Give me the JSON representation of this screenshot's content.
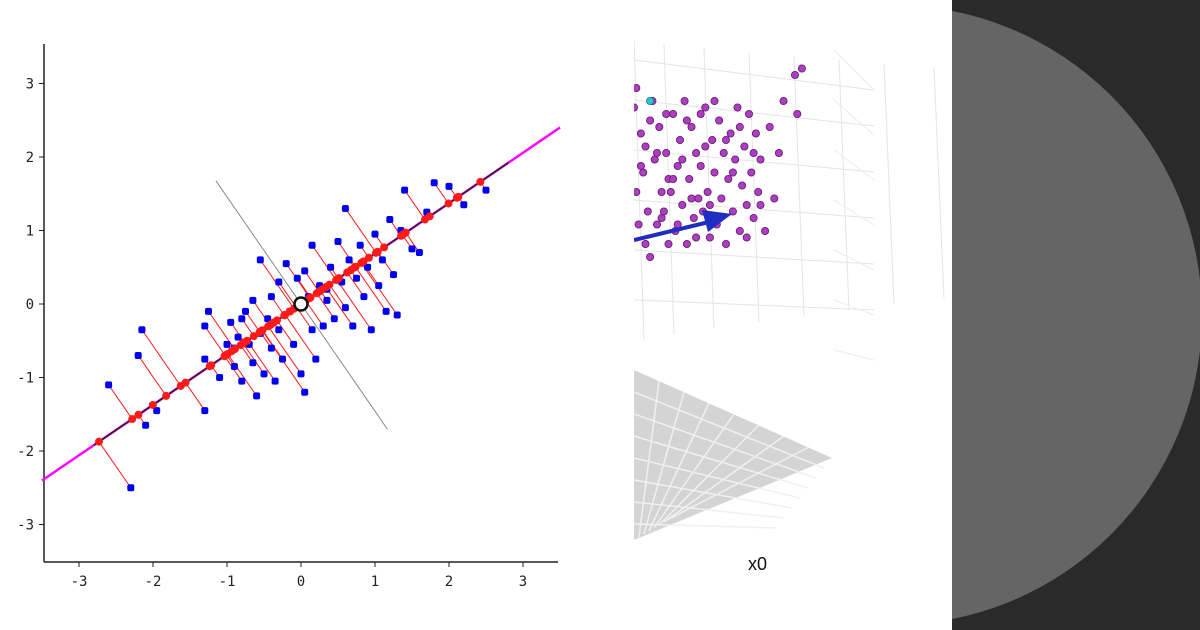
{
  "chart_data": [
    {
      "type": "scatter",
      "title": "",
      "xlabel": "",
      "ylabel": "",
      "xlim": [
        -3.5,
        3.5
      ],
      "ylim": [
        -3.5,
        3.5
      ],
      "x_ticks": [
        "-3",
        "-2",
        "-1",
        "0",
        "1",
        "2",
        "3"
      ],
      "y_ticks": [
        "3",
        "2",
        "1",
        "0",
        "-1",
        "-2",
        "-3"
      ],
      "principal_axis": {
        "slope": 0.686,
        "color": "#ff00ff"
      },
      "perpendicular_axis": {
        "color": "#888888"
      },
      "mean_point": [
        0,
        0
      ],
      "colors": {
        "points": "#0000ee",
        "projections": "#ff1a1a",
        "axis_line": "#222222"
      },
      "points": [
        [
          -2.6,
          -1.1
        ],
        [
          -2.3,
          -2.5
        ],
        [
          -2.2,
          -0.7
        ],
        [
          -2.15,
          -0.35
        ],
        [
          -2.1,
          -1.65
        ],
        [
          -1.95,
          -1.45
        ],
        [
          -1.3,
          -1.45
        ],
        [
          -1.3,
          -0.75
        ],
        [
          -1.3,
          -0.3
        ],
        [
          -1.25,
          -0.1
        ],
        [
          -1.1,
          -1.0
        ],
        [
          -1.0,
          -0.55
        ],
        [
          -0.95,
          -0.25
        ],
        [
          -0.9,
          -0.85
        ],
        [
          -0.85,
          -0.45
        ],
        [
          -0.8,
          -0.2
        ],
        [
          -0.8,
          -1.05
        ],
        [
          -0.75,
          -0.1
        ],
        [
          -0.7,
          -0.55
        ],
        [
          -0.65,
          0.05
        ],
        [
          -0.65,
          -0.8
        ],
        [
          -0.6,
          -1.25
        ],
        [
          -0.55,
          -0.4
        ],
        [
          -0.5,
          -0.95
        ],
        [
          -0.45,
          -0.2
        ],
        [
          -0.4,
          -0.6
        ],
        [
          -0.4,
          0.1
        ],
        [
          -0.35,
          -1.05
        ],
        [
          -0.3,
          -0.35
        ],
        [
          -0.3,
          0.3
        ],
        [
          -0.25,
          -0.75
        ],
        [
          -0.2,
          0.55
        ],
        [
          -0.15,
          -0.1
        ],
        [
          -0.1,
          -0.55
        ],
        [
          -0.05,
          0.35
        ],
        [
          0.0,
          -0.95
        ],
        [
          0.05,
          -1.2
        ],
        [
          0.05,
          0.45
        ],
        [
          0.1,
          0.1
        ],
        [
          0.15,
          -0.35
        ],
        [
          0.15,
          0.8
        ],
        [
          0.2,
          -0.75
        ],
        [
          0.25,
          0.25
        ],
        [
          0.3,
          -0.3
        ],
        [
          0.35,
          0.05
        ],
        [
          0.4,
          0.5
        ],
        [
          0.45,
          -0.2
        ],
        [
          0.5,
          0.85
        ],
        [
          0.55,
          0.3
        ],
        [
          0.6,
          -0.05
        ],
        [
          0.65,
          0.6
        ],
        [
          0.7,
          -0.3
        ],
        [
          0.75,
          0.35
        ],
        [
          0.8,
          0.8
        ],
        [
          0.85,
          0.1
        ],
        [
          0.9,
          0.5
        ],
        [
          0.95,
          -0.35
        ],
        [
          1.0,
          0.95
        ],
        [
          1.05,
          0.25
        ],
        [
          1.1,
          0.6
        ],
        [
          1.15,
          -0.1
        ],
        [
          1.2,
          1.15
        ],
        [
          1.25,
          0.4
        ],
        [
          1.3,
          -0.15
        ],
        [
          1.35,
          1.0
        ],
        [
          1.4,
          1.55
        ],
        [
          1.5,
          0.75
        ],
        [
          1.7,
          1.25
        ],
        [
          1.8,
          1.65
        ],
        [
          2.0,
          1.6
        ],
        [
          2.2,
          1.35
        ],
        [
          2.5,
          1.55
        ],
        [
          -0.55,
          0.6
        ],
        [
          0.35,
          0.2
        ],
        [
          -0.9,
          -0.6
        ],
        [
          0.6,
          1.3
        ],
        [
          1.6,
          0.7
        ]
      ]
    },
    {
      "type": "scatter",
      "title": "",
      "xlabel": "x0",
      "colors": {
        "points": "#b03cc4",
        "outlier": "#2bc4d0",
        "arrow": "#1f2ec2",
        "floor": "#d4d4d4"
      },
      "points": [
        [
          0.77,
          0.74
        ],
        [
          0.8,
          0.66
        ],
        [
          0.8,
          0.76
        ],
        [
          0.93,
          0.73
        ],
        [
          0.65,
          0.87
        ],
        [
          0.66,
          0.9
        ],
        [
          0.68,
          0.83
        ],
        [
          0.69,
          0.77
        ],
        [
          0.7,
          0.81
        ],
        [
          0.71,
          0.71
        ],
        [
          0.72,
          0.64
        ],
        [
          0.72,
          0.85
        ],
        [
          0.74,
          0.79
        ],
        [
          0.75,
          0.69
        ],
        [
          0.76,
          0.84
        ],
        [
          0.78,
          0.71
        ],
        [
          0.79,
          0.8
        ],
        [
          0.81,
          0.74
        ],
        [
          0.82,
          0.86
        ],
        [
          0.83,
          0.68
        ],
        [
          0.84,
          0.78
        ],
        [
          0.85,
          0.82
        ],
        [
          0.86,
          0.72
        ],
        [
          0.87,
          0.88
        ],
        [
          0.88,
          0.66
        ],
        [
          0.89,
          0.76
        ],
        [
          0.9,
          0.84
        ],
        [
          0.91,
          0.7
        ],
        [
          0.92,
          0.8
        ],
        [
          0.94,
          0.78
        ],
        [
          0.95,
          0.71
        ],
        [
          0.96,
          0.87
        ],
        [
          0.97,
          0.74
        ],
        [
          0.98,
          0.67
        ],
        [
          0.99,
          0.82
        ],
        [
          1.0,
          0.77
        ],
        [
          1.01,
          0.69
        ],
        [
          1.02,
          0.85
        ],
        [
          1.03,
          0.73
        ],
        [
          1.04,
          0.8
        ],
        [
          1.05,
          0.66
        ],
        [
          1.06,
          0.76
        ],
        [
          1.07,
          0.83
        ],
        [
          1.08,
          0.71
        ],
        [
          1.09,
          0.79
        ],
        [
          1.1,
          0.87
        ],
        [
          1.11,
          0.68
        ],
        [
          1.12,
          0.75
        ],
        [
          1.13,
          0.81
        ],
        [
          1.14,
          0.72
        ],
        [
          1.15,
          0.86
        ],
        [
          1.16,
          0.77
        ],
        [
          1.17,
          0.7
        ],
        [
          1.18,
          0.83
        ],
        [
          1.19,
          0.74
        ],
        [
          1.2,
          0.79
        ],
        [
          1.22,
          0.68
        ],
        [
          1.24,
          0.84
        ],
        [
          1.26,
          0.73
        ],
        [
          1.28,
          0.8
        ],
        [
          0.66,
          0.74
        ],
        [
          0.67,
          0.69
        ],
        [
          0.68,
          0.78
        ],
        [
          0.7,
          0.66
        ],
        [
          0.73,
          0.88
        ],
        [
          0.75,
          0.8
        ],
        [
          0.77,
          0.7
        ],
        [
          0.79,
          0.86
        ],
        [
          0.82,
          0.76
        ],
        [
          0.84,
          0.69
        ],
        [
          0.86,
          0.79
        ],
        [
          0.88,
          0.85
        ],
        [
          0.9,
          0.73
        ],
        [
          0.92,
          0.67
        ],
        [
          0.94,
          0.86
        ],
        [
          0.96,
          0.81
        ],
        [
          0.98,
          0.72
        ],
        [
          1.0,
          0.88
        ],
        [
          1.02,
          0.7
        ],
        [
          1.05,
          0.82
        ],
        [
          1.08,
          0.77
        ],
        [
          1.11,
          0.84
        ],
        [
          1.14,
          0.67
        ],
        [
          1.17,
          0.8
        ],
        [
          1.2,
          0.72
        ],
        [
          1.3,
          0.88
        ],
        [
          1.35,
          0.92
        ],
        [
          1.38,
          0.93
        ],
        [
          1.36,
          0.86
        ]
      ],
      "outlier": [
        0.72,
        0.88
      ]
    }
  ]
}
